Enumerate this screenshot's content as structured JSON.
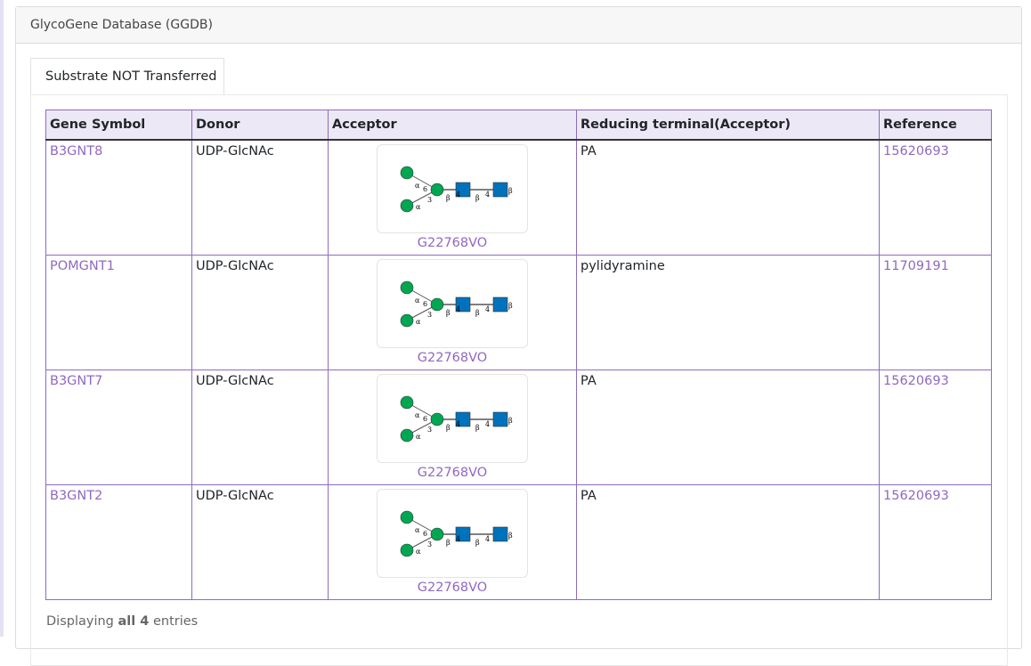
{
  "card": {
    "title": "GlycoGene Database (GGDB)"
  },
  "tab": {
    "label": "Substrate NOT Transferred"
  },
  "table": {
    "headers": [
      "Gene Symbol",
      "Donor",
      "Acceptor",
      "Reducing terminal(Acceptor)",
      "Reference"
    ],
    "rows": [
      {
        "gene": "B3GNT8",
        "donor": "UDP-GlcNAc",
        "acceptor": "G22768VO",
        "reducing": "PA",
        "reference": "15620693"
      },
      {
        "gene": "POMGNT1",
        "donor": "UDP-GlcNAc",
        "acceptor": "G22768VO",
        "reducing": "pylidyramine",
        "reference": "11709191"
      },
      {
        "gene": "B3GNT7",
        "donor": "UDP-GlcNAc",
        "acceptor": "G22768VO",
        "reducing": "PA",
        "reference": "15620693"
      },
      {
        "gene": "B3GNT2",
        "donor": "UDP-GlcNAc",
        "acceptor": "G22768VO",
        "reducing": "PA",
        "reference": "15620693"
      }
    ]
  },
  "glycan_colors": {
    "mannose": "#00a651",
    "glcnac": "#0072bc"
  },
  "footer": {
    "prefix": "Displaying ",
    "bold": "all 4",
    "suffix": " entries"
  }
}
